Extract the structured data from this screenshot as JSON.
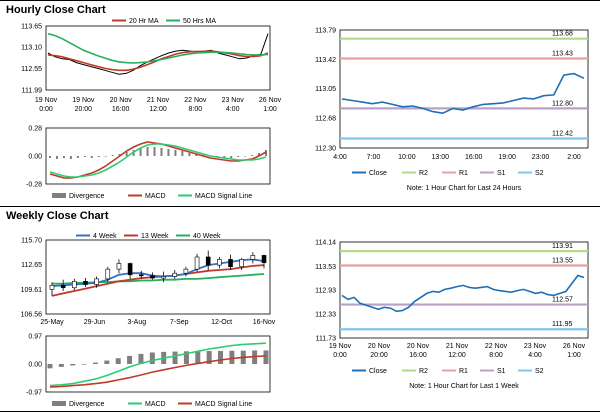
{
  "page": {
    "hourly_title": "Hourly Close Chart",
    "weekly_title": "Weekly Close Chart"
  },
  "colors": {
    "price": "#000000",
    "ma_short": "#c0392b",
    "ma_long": "#27ae60",
    "macd": "#c0392b",
    "signal": "#2ecc71",
    "divergence": "#7f7f7f",
    "w4": "#3a6fc4",
    "w13": "#c0392b",
    "w40": "#27ae60",
    "close": "#1f6fb5",
    "r2": "#b5d98a",
    "r1": "#e8a0a0",
    "s1": "#b9a0c9",
    "s2": "#7fc8e8"
  },
  "chart_data": [
    {
      "id": "hourly-price",
      "type": "line",
      "legend": [
        "20 Hr MA",
        "50 Hrs MA"
      ],
      "y_ticks": [
        "113.65",
        "113.10",
        "112.55",
        "111.99"
      ],
      "ylim": [
        111.99,
        113.65
      ],
      "x_labels": [
        [
          "19 Nov",
          "0:00"
        ],
        [
          "19 Nov",
          "20:00"
        ],
        [
          "20 Nov",
          "16:00"
        ],
        [
          "21 Nov",
          "12:00"
        ],
        [
          "22 Nov",
          "8:00"
        ],
        [
          "23 Nov",
          "4:00"
        ],
        [
          "26 Nov",
          "1:00"
        ]
      ],
      "series": [
        {
          "name": "Close",
          "color_key": "price",
          "values": [
            112.95,
            112.85,
            112.8,
            112.78,
            112.7,
            112.65,
            112.6,
            112.55,
            112.5,
            112.45,
            112.4,
            112.42,
            112.5,
            112.62,
            112.72,
            112.8,
            112.88,
            112.95,
            113.0,
            113.02,
            113.0,
            112.98,
            113.0,
            113.02,
            112.95,
            112.9,
            112.85,
            112.8,
            112.82,
            112.88,
            112.92,
            113.45
          ]
        },
        {
          "name": "20 Hr MA",
          "color_key": "ma_short",
          "values": [
            112.9,
            112.88,
            112.85,
            112.8,
            112.75,
            112.7,
            112.65,
            112.6,
            112.55,
            112.52,
            112.5,
            112.5,
            112.53,
            112.58,
            112.65,
            112.72,
            112.8,
            112.86,
            112.92,
            112.96,
            112.98,
            112.99,
            112.99,
            113.0,
            112.98,
            112.95,
            112.92,
            112.88,
            112.86,
            112.86,
            112.88,
            112.95
          ]
        },
        {
          "name": "50 Hrs MA",
          "color_key": "ma_long",
          "values": [
            113.45,
            113.4,
            113.32,
            113.22,
            113.12,
            113.02,
            112.95,
            112.88,
            112.82,
            112.76,
            112.72,
            112.7,
            112.69,
            112.7,
            112.72,
            112.75,
            112.78,
            112.82,
            112.86,
            112.9,
            112.93,
            112.95,
            112.96,
            112.97,
            112.97,
            112.96,
            112.95,
            112.93,
            112.91,
            112.9,
            112.9,
            112.91
          ]
        }
      ]
    },
    {
      "id": "hourly-macd",
      "type": "bar",
      "legend": [
        "Divergence",
        "MACD",
        "MACD Signal Line"
      ],
      "y_ticks": [
        "0.28",
        "0.00",
        "-0.28"
      ],
      "ylim": [
        -0.28,
        0.28
      ],
      "divergence": [
        -0.02,
        -0.03,
        -0.02,
        -0.03,
        -0.02,
        -0.01,
        -0.02,
        -0.01,
        0.0,
        0.01,
        0.02,
        0.04,
        0.06,
        0.08,
        0.09,
        0.09,
        0.08,
        0.07,
        0.06,
        0.05,
        0.03,
        0.02,
        0.01,
        0.0,
        -0.01,
        -0.02,
        -0.02,
        -0.01,
        0.0,
        0.01,
        0.03,
        0.06
      ],
      "series": [
        {
          "name": "MACD",
          "color_key": "macd",
          "values": [
            -0.18,
            -0.2,
            -0.22,
            -0.22,
            -0.21,
            -0.19,
            -0.17,
            -0.14,
            -0.1,
            -0.05,
            0.0,
            0.05,
            0.09,
            0.12,
            0.14,
            0.13,
            0.12,
            0.1,
            0.08,
            0.06,
            0.04,
            0.02,
            0.0,
            -0.02,
            -0.03,
            -0.04,
            -0.05,
            -0.05,
            -0.04,
            -0.03,
            0.0,
            0.04
          ]
        },
        {
          "name": "MACD Signal Line",
          "color_key": "signal",
          "values": [
            -0.16,
            -0.18,
            -0.2,
            -0.21,
            -0.21,
            -0.2,
            -0.19,
            -0.17,
            -0.14,
            -0.1,
            -0.06,
            -0.01,
            0.04,
            0.08,
            0.11,
            0.12,
            0.12,
            0.11,
            0.1,
            0.08,
            0.06,
            0.04,
            0.02,
            0.0,
            -0.01,
            -0.02,
            -0.03,
            -0.04,
            -0.04,
            -0.04,
            -0.03,
            -0.01
          ]
        }
      ]
    },
    {
      "id": "hourly-levels",
      "type": "line",
      "y_ticks": [
        "113.79",
        "113.42",
        "113.05",
        "112.68",
        "112.30"
      ],
      "ylim": [
        112.3,
        113.79
      ],
      "x_labels": [
        "4:00",
        "7:00",
        "10:00",
        "13:00",
        "16:00",
        "19:00",
        "23:00",
        "2:00"
      ],
      "levels": [
        {
          "name": "R2",
          "value": 113.68,
          "label": "113.68",
          "color_key": "r2"
        },
        {
          "name": "R1",
          "value": 113.43,
          "label": "113.43",
          "color_key": "r1"
        },
        {
          "name": "S1",
          "value": 112.8,
          "label": "112.80",
          "color_key": "s1"
        },
        {
          "name": "S2",
          "value": 112.42,
          "label": "112.42",
          "color_key": "s2"
        }
      ],
      "close": [
        112.92,
        112.9,
        112.88,
        112.86,
        112.88,
        112.85,
        112.82,
        112.83,
        112.8,
        112.76,
        112.74,
        112.8,
        112.78,
        112.82,
        112.85,
        112.86,
        112.87,
        112.9,
        112.93,
        112.92,
        112.96,
        112.97,
        113.22,
        113.24,
        113.18
      ],
      "legend": [
        "Close",
        "R2",
        "R1",
        "S1",
        "S2"
      ],
      "note": "Note: 1 Hour Chart for Last 24 Hours"
    },
    {
      "id": "weekly-price",
      "type": "line",
      "legend": [
        "4 Week",
        "13 Week",
        "40 Week"
      ],
      "y_ticks": [
        "115.70",
        "112.65",
        "109.61",
        "106.56"
      ],
      "ylim": [
        106.56,
        115.7
      ],
      "x_labels": [
        "25-May",
        "29-Jun",
        "3-Aug",
        "7-Sep",
        "12-Oct",
        "16-Nov"
      ],
      "candles": [
        {
          "o": 109.6,
          "h": 110.5,
          "l": 108.8,
          "c": 110.1
        },
        {
          "o": 110.1,
          "h": 110.8,
          "l": 109.4,
          "c": 109.8
        },
        {
          "o": 109.8,
          "h": 110.9,
          "l": 109.5,
          "c": 110.6
        },
        {
          "o": 110.6,
          "h": 111.0,
          "l": 109.9,
          "c": 110.2
        },
        {
          "o": 110.2,
          "h": 111.2,
          "l": 109.8,
          "c": 110.9
        },
        {
          "o": 110.9,
          "h": 112.4,
          "l": 110.5,
          "c": 112.1
        },
        {
          "o": 112.1,
          "h": 113.3,
          "l": 111.6,
          "c": 112.8
        },
        {
          "o": 112.8,
          "h": 112.9,
          "l": 110.9,
          "c": 111.4
        },
        {
          "o": 111.4,
          "h": 111.9,
          "l": 110.9,
          "c": 111.3
        },
        {
          "o": 111.3,
          "h": 111.7,
          "l": 110.8,
          "c": 111.0
        },
        {
          "o": 111.0,
          "h": 111.8,
          "l": 110.5,
          "c": 111.2
        },
        {
          "o": 111.2,
          "h": 112.0,
          "l": 110.9,
          "c": 111.6
        },
        {
          "o": 111.6,
          "h": 112.4,
          "l": 111.2,
          "c": 112.1
        },
        {
          "o": 112.1,
          "h": 114.0,
          "l": 111.8,
          "c": 113.6
        },
        {
          "o": 113.6,
          "h": 114.4,
          "l": 112.0,
          "c": 112.6
        },
        {
          "o": 112.6,
          "h": 113.6,
          "l": 112.2,
          "c": 113.3
        },
        {
          "o": 113.3,
          "h": 113.9,
          "l": 112.0,
          "c": 112.4
        },
        {
          "o": 112.4,
          "h": 113.5,
          "l": 112.0,
          "c": 113.3
        },
        {
          "o": 113.3,
          "h": 114.2,
          "l": 112.8,
          "c": 113.8
        },
        {
          "o": 113.8,
          "h": 113.9,
          "l": 112.2,
          "c": 112.9
        }
      ],
      "series": [
        {
          "name": "4 Week",
          "color_key": "w4",
          "values": [
            110.0,
            110.1,
            110.2,
            110.3,
            110.4,
            110.8,
            111.4,
            111.6,
            111.6,
            111.3,
            111.2,
            111.3,
            111.5,
            112.1,
            112.6,
            112.8,
            113.0,
            113.2,
            113.3,
            113.1
          ]
        },
        {
          "name": "13 Week",
          "color_key": "w13",
          "values": [
            108.8,
            109.1,
            109.4,
            109.7,
            110.0,
            110.3,
            110.6,
            110.8,
            111.0,
            111.1,
            111.2,
            111.3,
            111.5,
            111.7,
            111.9,
            112.0,
            112.1,
            112.3,
            112.5,
            112.6
          ]
        },
        {
          "name": "40 Week",
          "color_key": "w40",
          "values": [
            110.3,
            110.3,
            110.4,
            110.4,
            110.5,
            110.5,
            110.6,
            110.6,
            110.7,
            110.7,
            110.8,
            110.8,
            110.9,
            110.9,
            111.0,
            111.1,
            111.2,
            111.3,
            111.4,
            111.5
          ]
        }
      ]
    },
    {
      "id": "weekly-macd",
      "type": "bar",
      "legend": [
        "Divergence",
        "MACD",
        "MACD Signal Line"
      ],
      "y_ticks": [
        "0.97",
        "0.00",
        "-0.97"
      ],
      "ylim": [
        -0.97,
        0.97
      ],
      "divergence": [
        -0.15,
        -0.1,
        -0.05,
        0.0,
        0.05,
        0.12,
        0.2,
        0.28,
        0.35,
        0.4,
        0.42,
        0.43,
        0.44,
        0.44,
        0.45,
        0.45,
        0.46,
        0.46,
        0.47,
        0.47
      ],
      "series": [
        {
          "name": "MACD",
          "color_key": "signal",
          "values": [
            -0.75,
            -0.72,
            -0.68,
            -0.6,
            -0.52,
            -0.4,
            -0.25,
            -0.1,
            0.02,
            0.12,
            0.2,
            0.28,
            0.36,
            0.44,
            0.52,
            0.58,
            0.64,
            0.68,
            0.7,
            0.72
          ]
        },
        {
          "name": "MACD Signal Line",
          "color_key": "macd",
          "values": [
            -0.8,
            -0.78,
            -0.75,
            -0.72,
            -0.68,
            -0.63,
            -0.55,
            -0.47,
            -0.38,
            -0.28,
            -0.2,
            -0.12,
            -0.05,
            0.02,
            0.08,
            0.14,
            0.19,
            0.23,
            0.26,
            0.28
          ]
        }
      ]
    },
    {
      "id": "weekly-levels",
      "type": "line",
      "y_ticks": [
        "114.14",
        "113.53",
        "112.93",
        "112.33",
        "111.73"
      ],
      "ylim": [
        111.73,
        114.14
      ],
      "x_labels": [
        [
          "19 Nov",
          "0:00"
        ],
        [
          "20 Nov",
          "20:00"
        ],
        [
          "20 Nov",
          "16:00"
        ],
        [
          "21 Nov",
          "12:00"
        ],
        [
          "22 Nov",
          "8:00"
        ],
        [
          "23 Nov",
          "4:00"
        ],
        [
          "26 Nov",
          "1:00"
        ]
      ],
      "levels": [
        {
          "name": "R2",
          "value": 113.91,
          "label": "113.91",
          "color_key": "r2"
        },
        {
          "name": "R1",
          "value": 113.55,
          "label": "113.55",
          "color_key": "r1"
        },
        {
          "name": "S1",
          "value": 112.57,
          "label": "112.57",
          "color_key": "s1"
        },
        {
          "name": "S2",
          "value": 111.95,
          "label": "111.95",
          "color_key": "s2"
        }
      ],
      "close": [
        112.8,
        112.7,
        112.75,
        112.6,
        112.55,
        112.5,
        112.45,
        112.5,
        112.48,
        112.4,
        112.42,
        112.5,
        112.65,
        112.75,
        112.85,
        112.9,
        112.88,
        112.95,
        112.98,
        113.02,
        113.05,
        113.0,
        112.98,
        113.0,
        113.02,
        112.95,
        112.92,
        112.9,
        112.88,
        112.92,
        112.95,
        112.9,
        112.85,
        112.88,
        112.82,
        112.8,
        112.85,
        112.9,
        113.1,
        113.3,
        113.25
      ],
      "legend": [
        "Close",
        "R2",
        "R1",
        "S1",
        "S2"
      ],
      "note": "Note: 1 Hour Chart for Last 1 Week"
    }
  ]
}
